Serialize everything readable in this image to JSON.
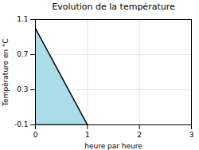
{
  "chart_data": {
    "type": "area",
    "title": "Evolution de la température",
    "x_label": "heure par heure",
    "y_label": "Température en °C",
    "x": [
      0,
      1
    ],
    "values": [
      1.0,
      -0.1
    ],
    "color": "#aadde8",
    "xlim": [
      0,
      3
    ],
    "ylim": [
      -0.1,
      1.1
    ],
    "xticks": [
      0,
      1,
      2,
      3
    ],
    "yticks": [
      -0.1,
      0.3,
      0.7,
      1.1
    ],
    "grid": true
  }
}
